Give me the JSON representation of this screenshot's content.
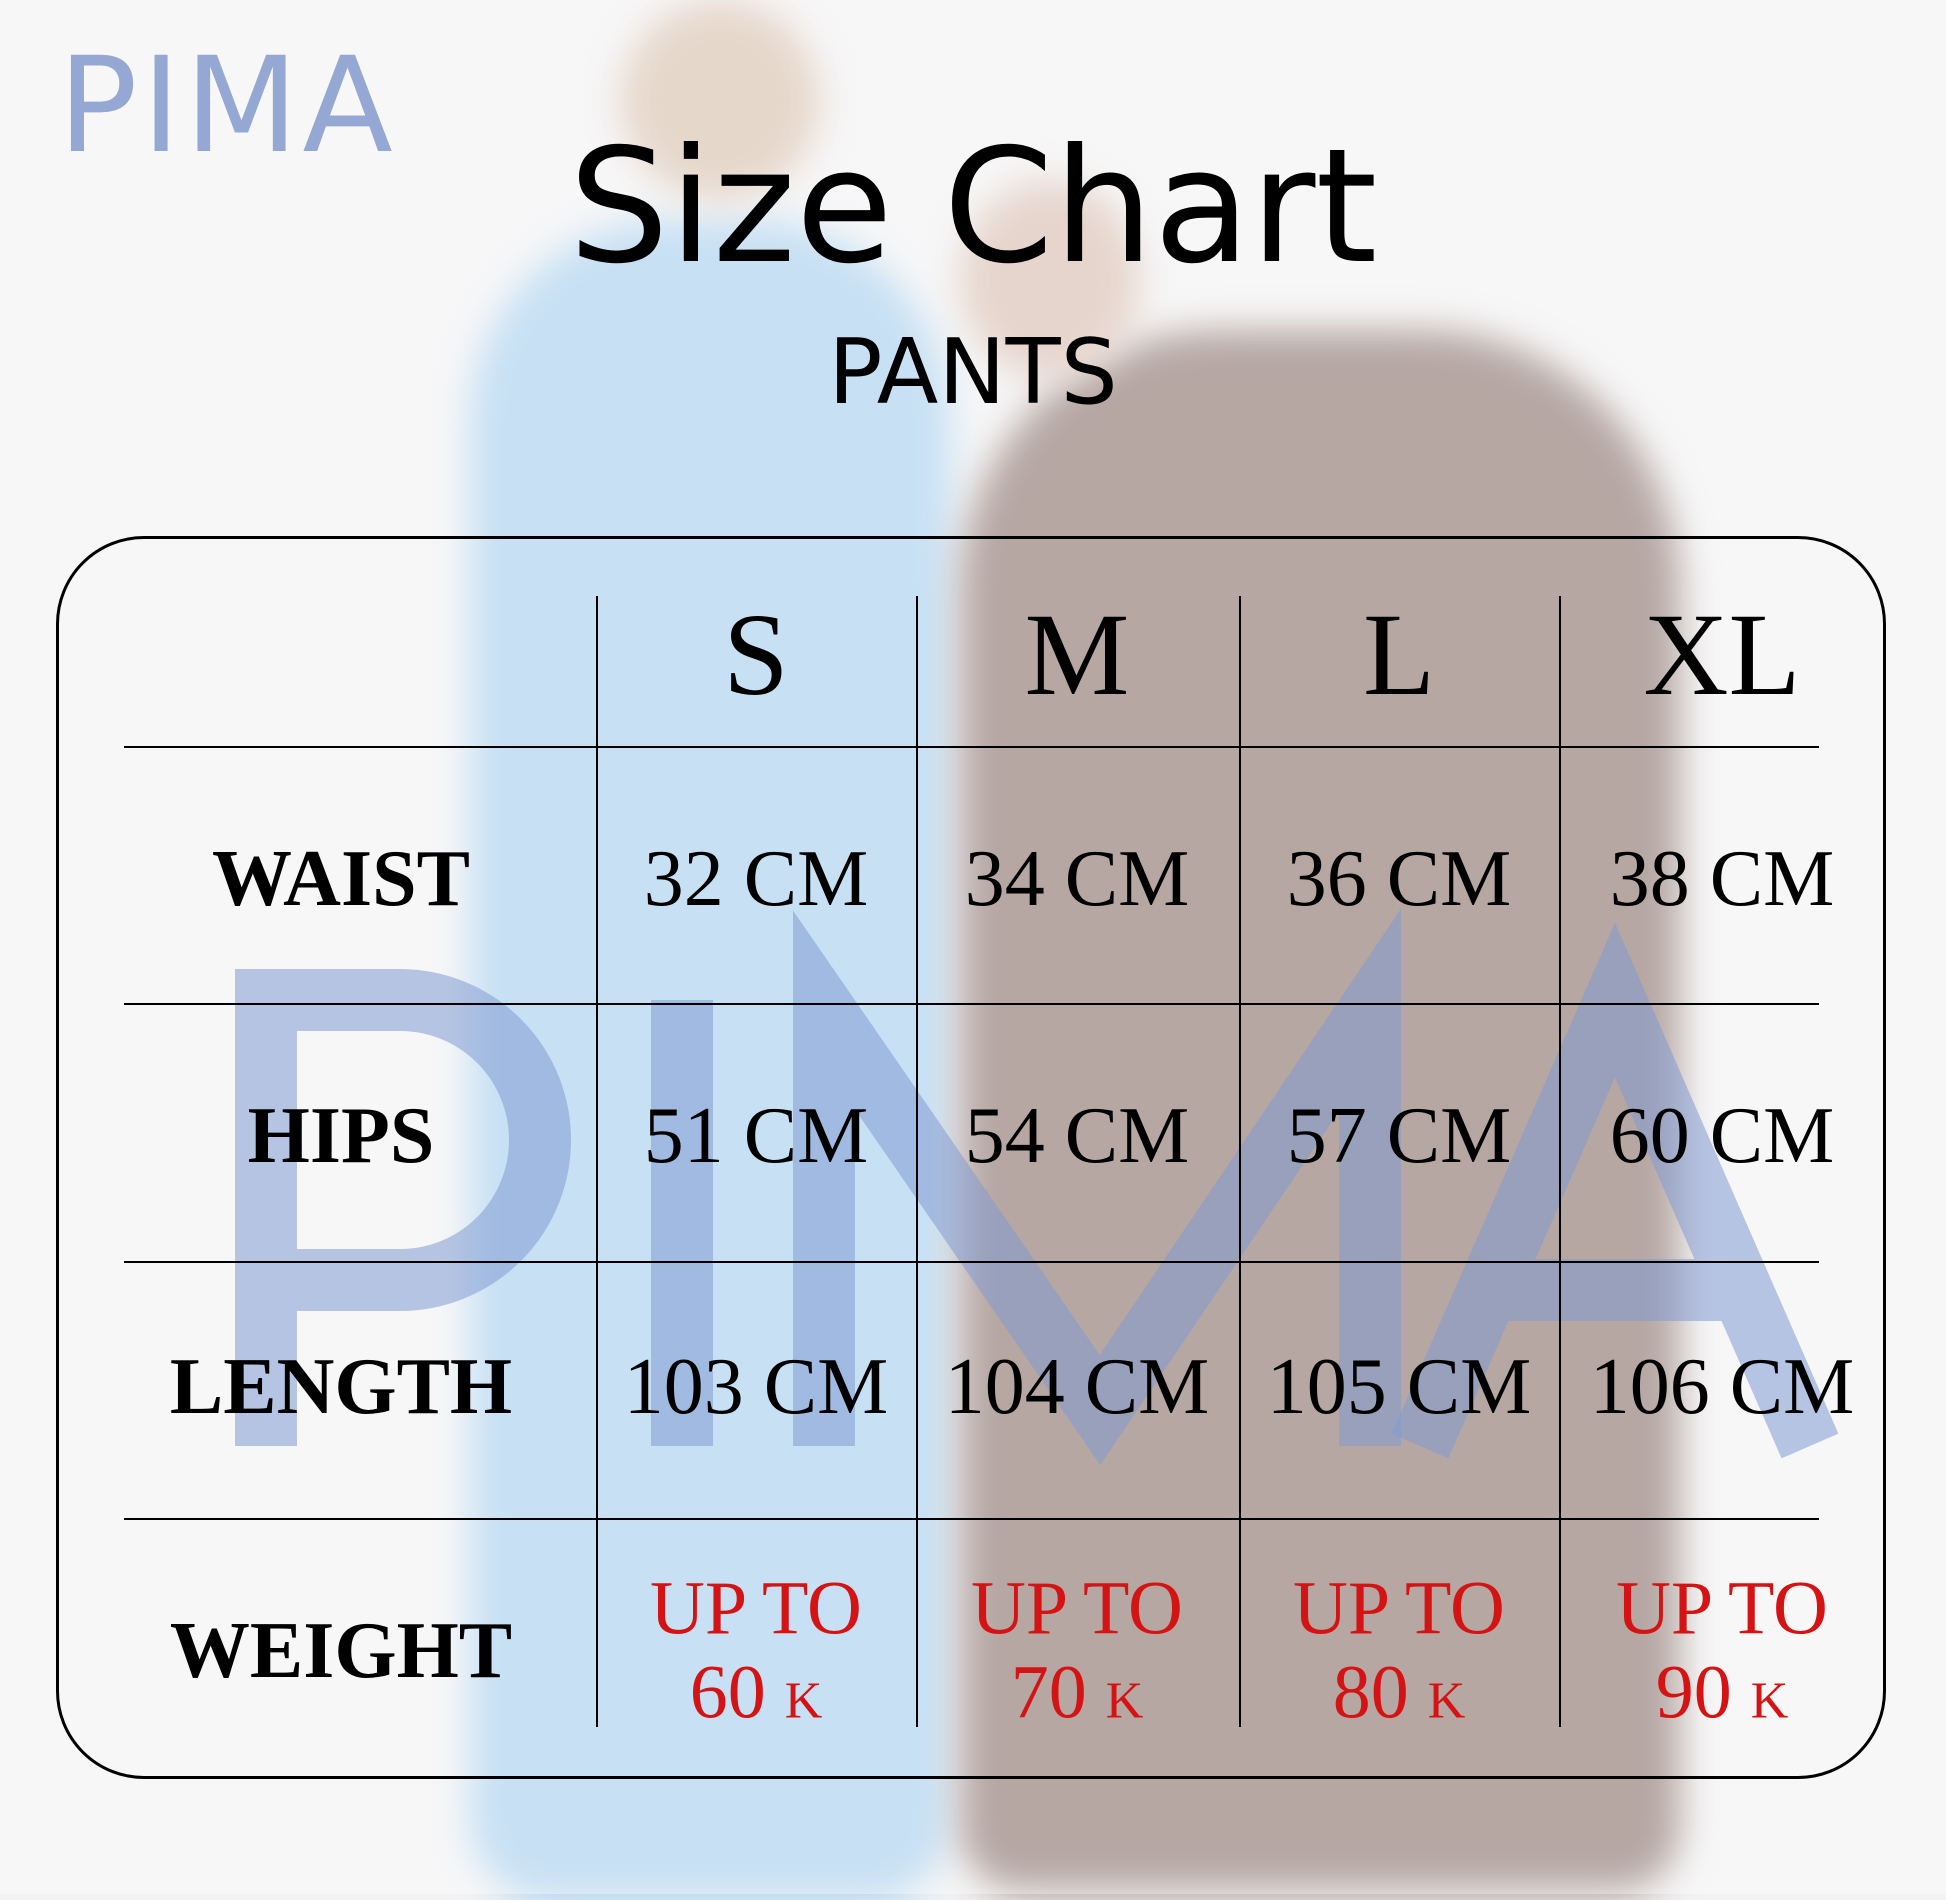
{
  "logo": "PIMA",
  "title": "Size Chart",
  "subtitle": "PANTS",
  "watermark": "PIMA",
  "colors": {
    "logo": "#94a8d3",
    "weight_text": "#d41414",
    "text": "#000000"
  },
  "table": {
    "sizes": [
      "S",
      "M",
      "L",
      "XL"
    ],
    "rows": [
      {
        "label": "WAIST",
        "values": [
          "32 CM",
          "34 CM",
          "36 CM",
          "38 CM"
        ]
      },
      {
        "label": "HIPS",
        "values": [
          "51 CM",
          "54 CM",
          "57 CM",
          "60 CM"
        ]
      },
      {
        "label": "LENGTH",
        "values": [
          "103 CM",
          "104 CM",
          "105 CM",
          "106 CM"
        ]
      }
    ],
    "weight": {
      "label": "WEIGHT",
      "prefix": "UP TO",
      "unit": "K",
      "values": [
        "60",
        "70",
        "80",
        "90"
      ]
    }
  }
}
